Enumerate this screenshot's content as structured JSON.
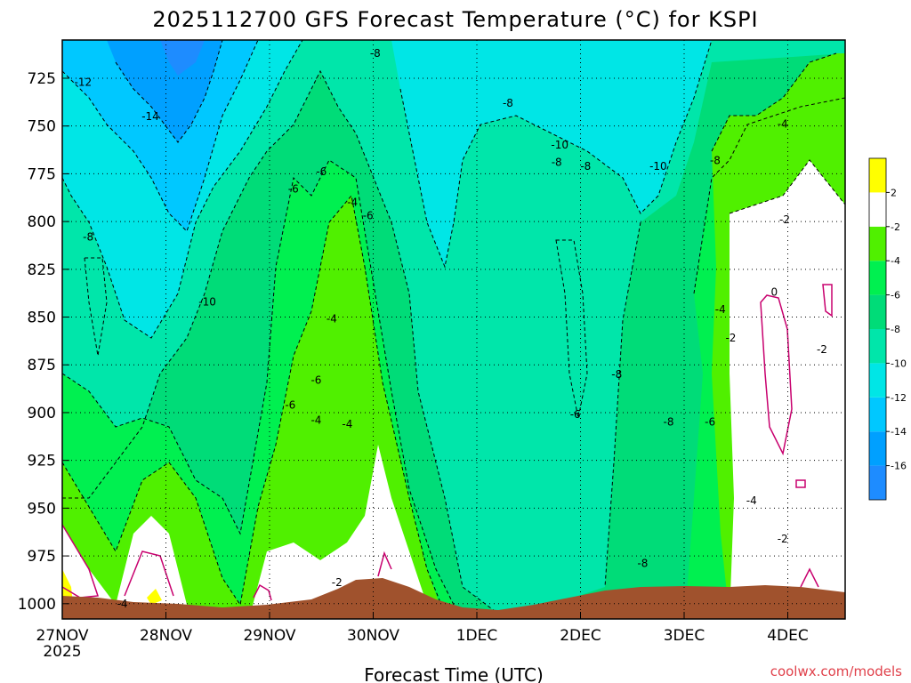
{
  "chart_data": {
    "type": "heatmap",
    "title": "2025112700 GFS Forecast Temperature (°C) for KSPI",
    "xlabel": "Forecast Time (UTC)",
    "ylabel": "",
    "credit": "coolwx.com/models",
    "x_ticks": [
      "27NOV",
      "28NOV",
      "29NOV",
      "30NOV",
      "1DEC",
      "2DEC",
      "3DEC",
      "4DEC"
    ],
    "x_year": "2025",
    "y_ticks": [
      725,
      750,
      775,
      800,
      825,
      850,
      875,
      900,
      925,
      950,
      975,
      1000
    ],
    "ylim": [
      1008,
      705
    ],
    "xlim_days": [
      0,
      7.5
    ],
    "grid": true,
    "colorbar": {
      "levels": [
        -18,
        -16,
        -14,
        -12,
        -10,
        -8,
        -6,
        -4,
        -2,
        2,
        4
      ],
      "labels": [
        "-16",
        "-14",
        "-12",
        "-10",
        "-8",
        "-6",
        "-4",
        "-2",
        "2"
      ],
      "colors": [
        "#1e8cff",
        "#00a0ff",
        "#00c8ff",
        "#00e6e6",
        "#00e6aa",
        "#00dc78",
        "#00f050",
        "#50f000",
        "#ffffff",
        "#ffff00"
      ]
    },
    "contour_labels": [
      {
        "text": "-12",
        "day": 0.2,
        "p": 727
      },
      {
        "text": "-14",
        "day": 0.85,
        "p": 745
      },
      {
        "text": "-8",
        "day": 3.02,
        "p": 712
      },
      {
        "text": "-8",
        "day": 4.3,
        "p": 738
      },
      {
        "text": "-10",
        "day": 4.8,
        "p": 760
      },
      {
        "text": "-8",
        "day": 4.77,
        "p": 769
      },
      {
        "text": "-8",
        "day": 5.05,
        "p": 771
      },
      {
        "text": "-10",
        "day": 5.75,
        "p": 771
      },
      {
        "text": "-8",
        "day": 6.3,
        "p": 768
      },
      {
        "text": "-4",
        "day": 6.95,
        "p": 749
      },
      {
        "text": "-2",
        "day": 6.97,
        "p": 799
      },
      {
        "text": "-6",
        "day": 2.5,
        "p": 774
      },
      {
        "text": "-6",
        "day": 2.23,
        "p": 783
      },
      {
        "text": "-4",
        "day": 2.8,
        "p": 790
      },
      {
        "text": "-6",
        "day": 2.95,
        "p": 797
      },
      {
        "text": "-8",
        "day": 0.25,
        "p": 808
      },
      {
        "text": "-10",
        "day": 1.4,
        "p": 842
      },
      {
        "text": "0",
        "day": 6.87,
        "p": 837
      },
      {
        "text": "-4",
        "day": 6.35,
        "p": 846
      },
      {
        "text": "-2",
        "day": 6.45,
        "p": 861
      },
      {
        "text": "-2",
        "day": 7.33,
        "p": 867
      },
      {
        "text": "-4",
        "day": 2.6,
        "p": 851
      },
      {
        "text": "-6",
        "day": 2.45,
        "p": 883
      },
      {
        "text": "-6",
        "day": 2.2,
        "p": 896
      },
      {
        "text": "-8",
        "day": 5.35,
        "p": 880
      },
      {
        "text": "-6",
        "day": 4.95,
        "p": 901
      },
      {
        "text": "-4",
        "day": 2.45,
        "p": 904
      },
      {
        "text": "-4",
        "day": 2.75,
        "p": 906
      },
      {
        "text": "-8",
        "day": 5.85,
        "p": 905
      },
      {
        "text": "-6",
        "day": 6.25,
        "p": 905
      },
      {
        "text": "-4",
        "day": 6.65,
        "p": 946
      },
      {
        "text": "-2",
        "day": 6.95,
        "p": 966
      },
      {
        "text": "-2",
        "day": 2.65,
        "p": 989
      },
      {
        "text": "-8",
        "day": 5.6,
        "p": 979
      },
      {
        "text": "-4",
        "day": 0.58,
        "p": 1000
      }
    ]
  }
}
